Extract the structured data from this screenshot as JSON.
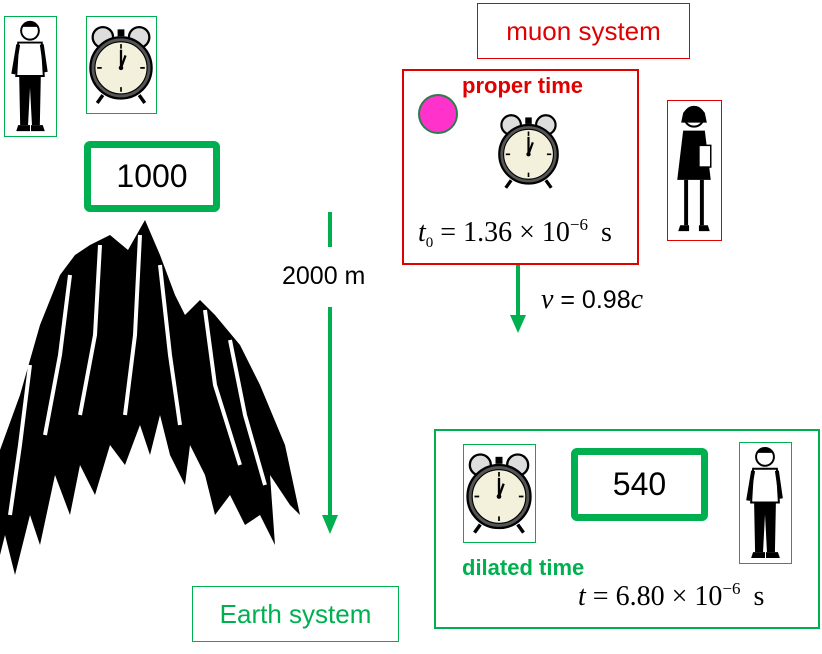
{
  "earth_frame": {
    "count": "1000",
    "distance_label": "2000 m",
    "system_label": "Earth system"
  },
  "muon_frame": {
    "system_label": "muon system",
    "proper_time_label": "proper time",
    "proper_time_symbol": "t",
    "proper_time_subscript": "0",
    "proper_time_value": "= 1.36 × 10",
    "proper_time_exponent": "−6",
    "proper_time_unit": "s",
    "velocity_symbol": "v",
    "velocity_value": "= 0.98",
    "velocity_c": "c"
  },
  "dilated_frame": {
    "count": "540",
    "dilated_time_label": "dilated time",
    "time_symbol": "t",
    "time_value": "= 6.80 × 10",
    "time_exponent": "−6",
    "time_unit": "s"
  },
  "colors": {
    "green": "#00b050",
    "red": "#e00000",
    "muon": "#ff33cc"
  }
}
